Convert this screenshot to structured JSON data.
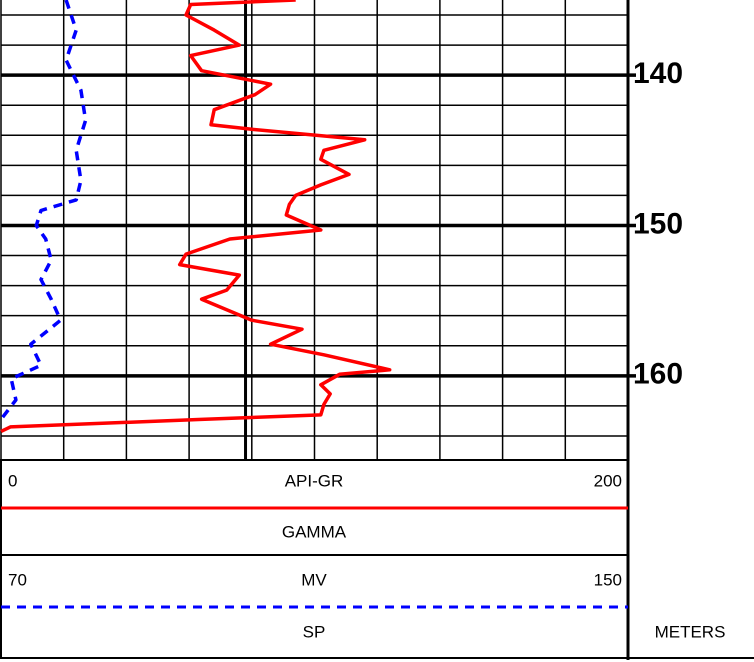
{
  "chart_data": {
    "type": "well-log",
    "depth_label": "METERS",
    "ylim": [
      135,
      165.6
    ],
    "yticks": [
      140,
      150,
      160
    ],
    "ygrid": [
      136,
      138,
      140,
      142,
      144,
      146,
      148,
      150,
      152,
      154,
      156,
      158,
      160,
      162,
      164
    ],
    "xgrid": [
      0,
      20,
      40,
      60,
      80,
      100,
      120,
      140,
      160,
      180,
      200
    ],
    "cutoff": 78,
    "series": [
      {
        "name": "GAMMA",
        "units": "API-GR",
        "color": "#ff0000",
        "dashed": false,
        "xlim": [
          0,
          200
        ],
        "depth": [
          135.0,
          135.3,
          136.0,
          137.0,
          138.0,
          138.7,
          139.7,
          140.6,
          141.3,
          142.3,
          143.3,
          143.6,
          144.3,
          145.0,
          145.6,
          146.6,
          147.3,
          148.0,
          148.6,
          149.3,
          150.3,
          150.9,
          151.9,
          152.6,
          153.3,
          154.3,
          154.9,
          155.6,
          156.3,
          156.9,
          157.9,
          158.6,
          159.6,
          159.9,
          160.6,
          161.2,
          161.9,
          162.6,
          162.9,
          163.4,
          163.7
        ],
        "values": [
          94,
          60.5,
          59,
          68,
          76,
          60.5,
          64,
          86,
          81,
          68,
          67,
          80,
          116,
          103,
          102,
          111,
          102,
          94,
          92,
          91,
          102,
          73,
          59,
          57,
          76,
          72,
          64,
          72,
          80,
          96,
          86,
          103,
          124,
          108,
          102,
          105,
          103,
          102,
          64,
          3,
          0
        ]
      },
      {
        "name": "SP",
        "units": "MV",
        "color": "#0000ff",
        "dashed": true,
        "xlim": [
          70,
          150
        ],
        "depth": [
          135,
          137,
          139,
          141,
          143,
          145,
          147,
          148.3,
          149,
          150,
          150.9,
          152.3,
          153.6,
          154.9,
          156.3,
          157.9,
          159.3,
          160.2,
          161.6,
          162.9
        ],
        "values": [
          78.3,
          79.6,
          78.3,
          80.2,
          80.8,
          79.6,
          80.2,
          79.6,
          75.1,
          74.5,
          75.7,
          76.4,
          75.1,
          76.4,
          77.6,
          73.8,
          75.1,
          71.3,
          71.9,
          70
        ]
      }
    ]
  }
}
